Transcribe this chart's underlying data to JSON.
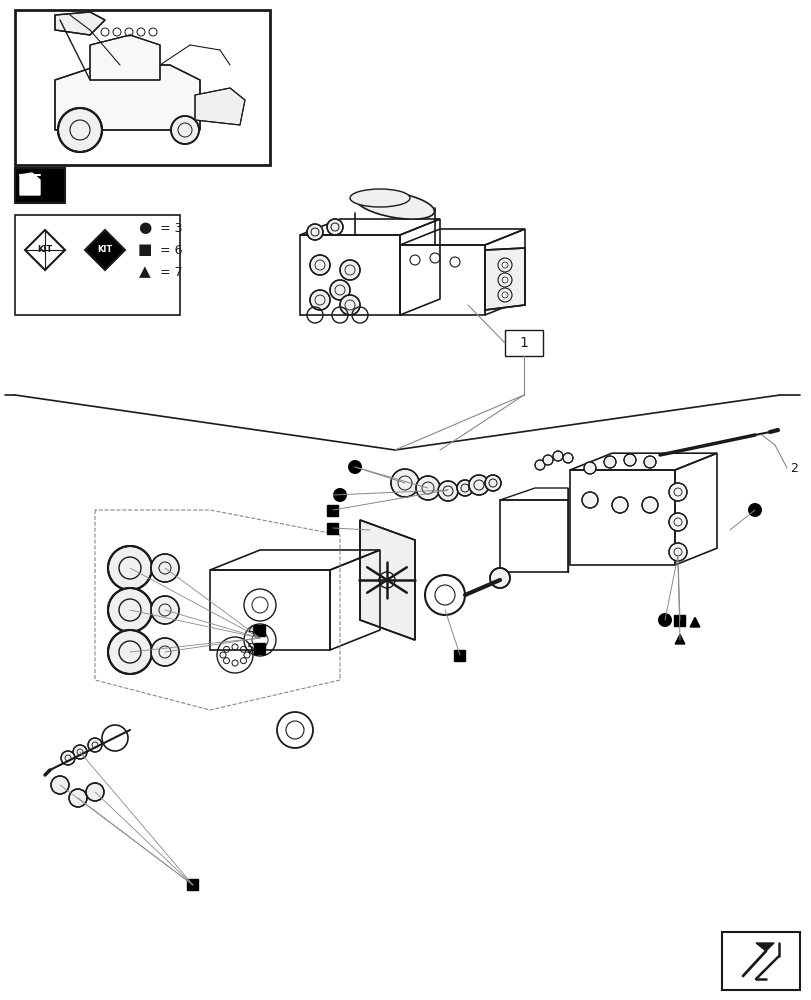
{
  "bg_color": "#ffffff",
  "line_color": "#1a1a1a",
  "gray_color": "#888888",
  "page_width": 8.12,
  "page_height": 10.0,
  "dpi": 100
}
